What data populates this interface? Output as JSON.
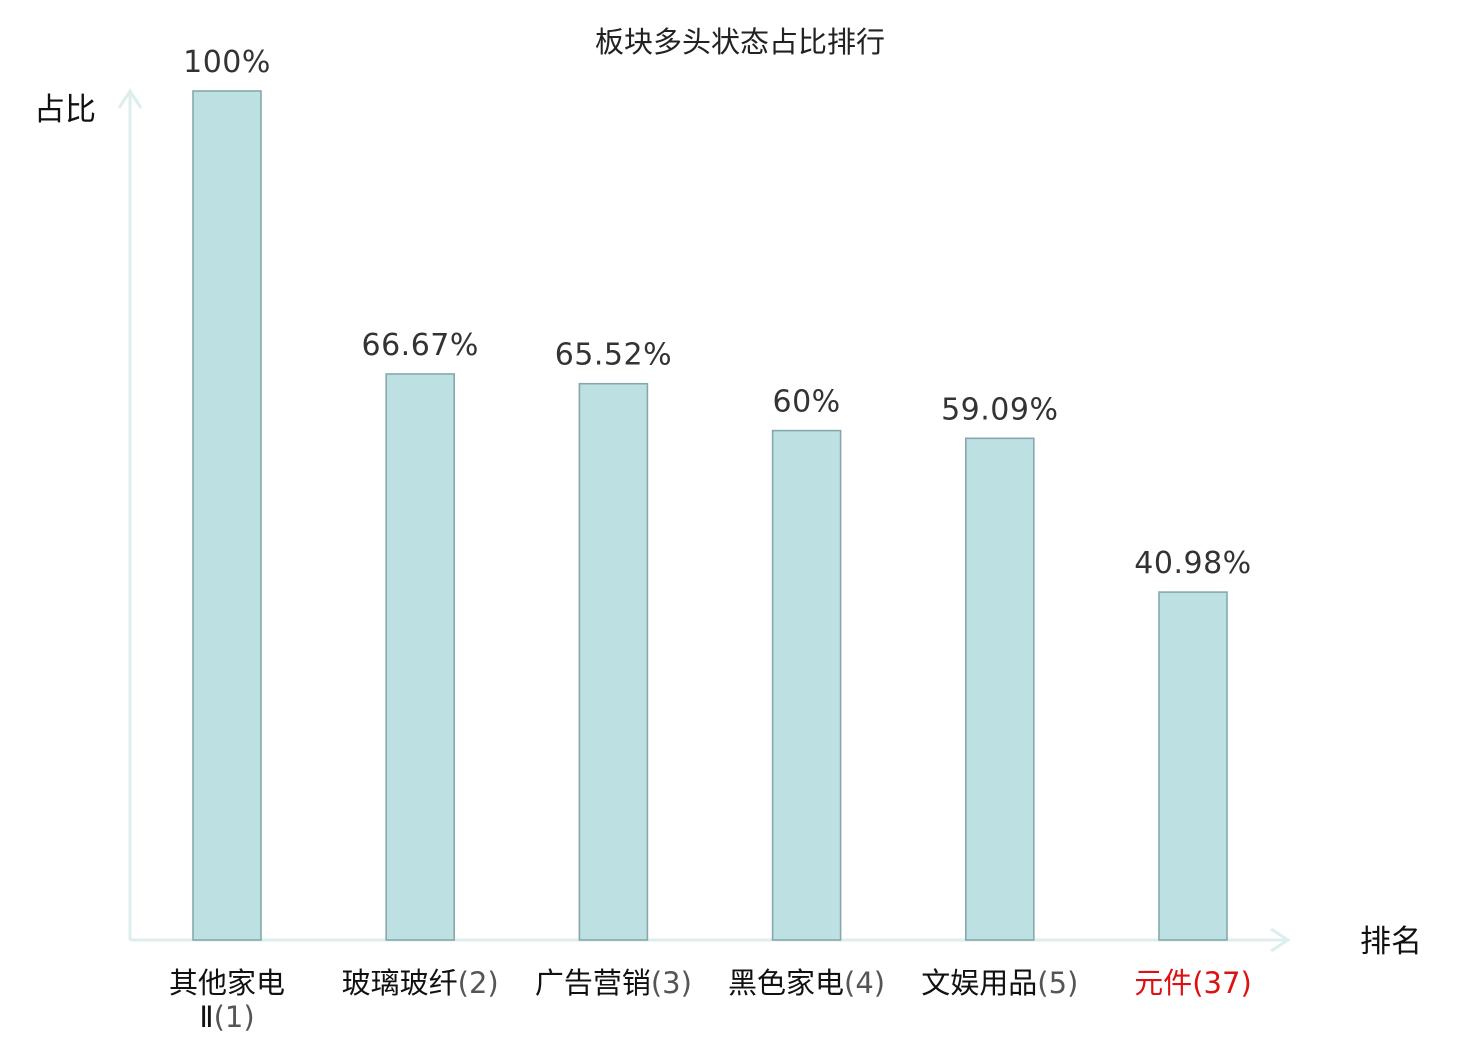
{
  "chart_data": {
    "type": "bar",
    "title": "板块多头状态占比排行",
    "ylabel": "占比",
    "xlabel": "排名",
    "ylim": [
      0,
      100
    ],
    "grid": false,
    "categories": [
      {
        "name_lines": [
          "其他家电",
          "Ⅱ"
        ],
        "rank": "(1)",
        "highlight": false
      },
      {
        "name_lines": [
          "玻璃玻纤"
        ],
        "rank": "(2)",
        "highlight": false
      },
      {
        "name_lines": [
          "广告营销"
        ],
        "rank": "(3)",
        "highlight": false
      },
      {
        "name_lines": [
          "黑色家电"
        ],
        "rank": "(4)",
        "highlight": false
      },
      {
        "name_lines": [
          "文娱用品"
        ],
        "rank": "(5)",
        "highlight": false
      },
      {
        "name_lines": [
          "元件"
        ],
        "rank": "(37)",
        "highlight": true
      }
    ],
    "values": [
      100,
      66.67,
      65.52,
      60,
      59.09,
      40.98
    ],
    "value_labels": [
      "100%",
      "66.67%",
      "65.52%",
      "60%",
      "59.09%",
      "40.98%"
    ],
    "colors": {
      "bar_fill": "#bde0e2",
      "bar_stroke": "#86a8aa",
      "axis": "#dcefee",
      "highlight": "#dd1111"
    }
  }
}
